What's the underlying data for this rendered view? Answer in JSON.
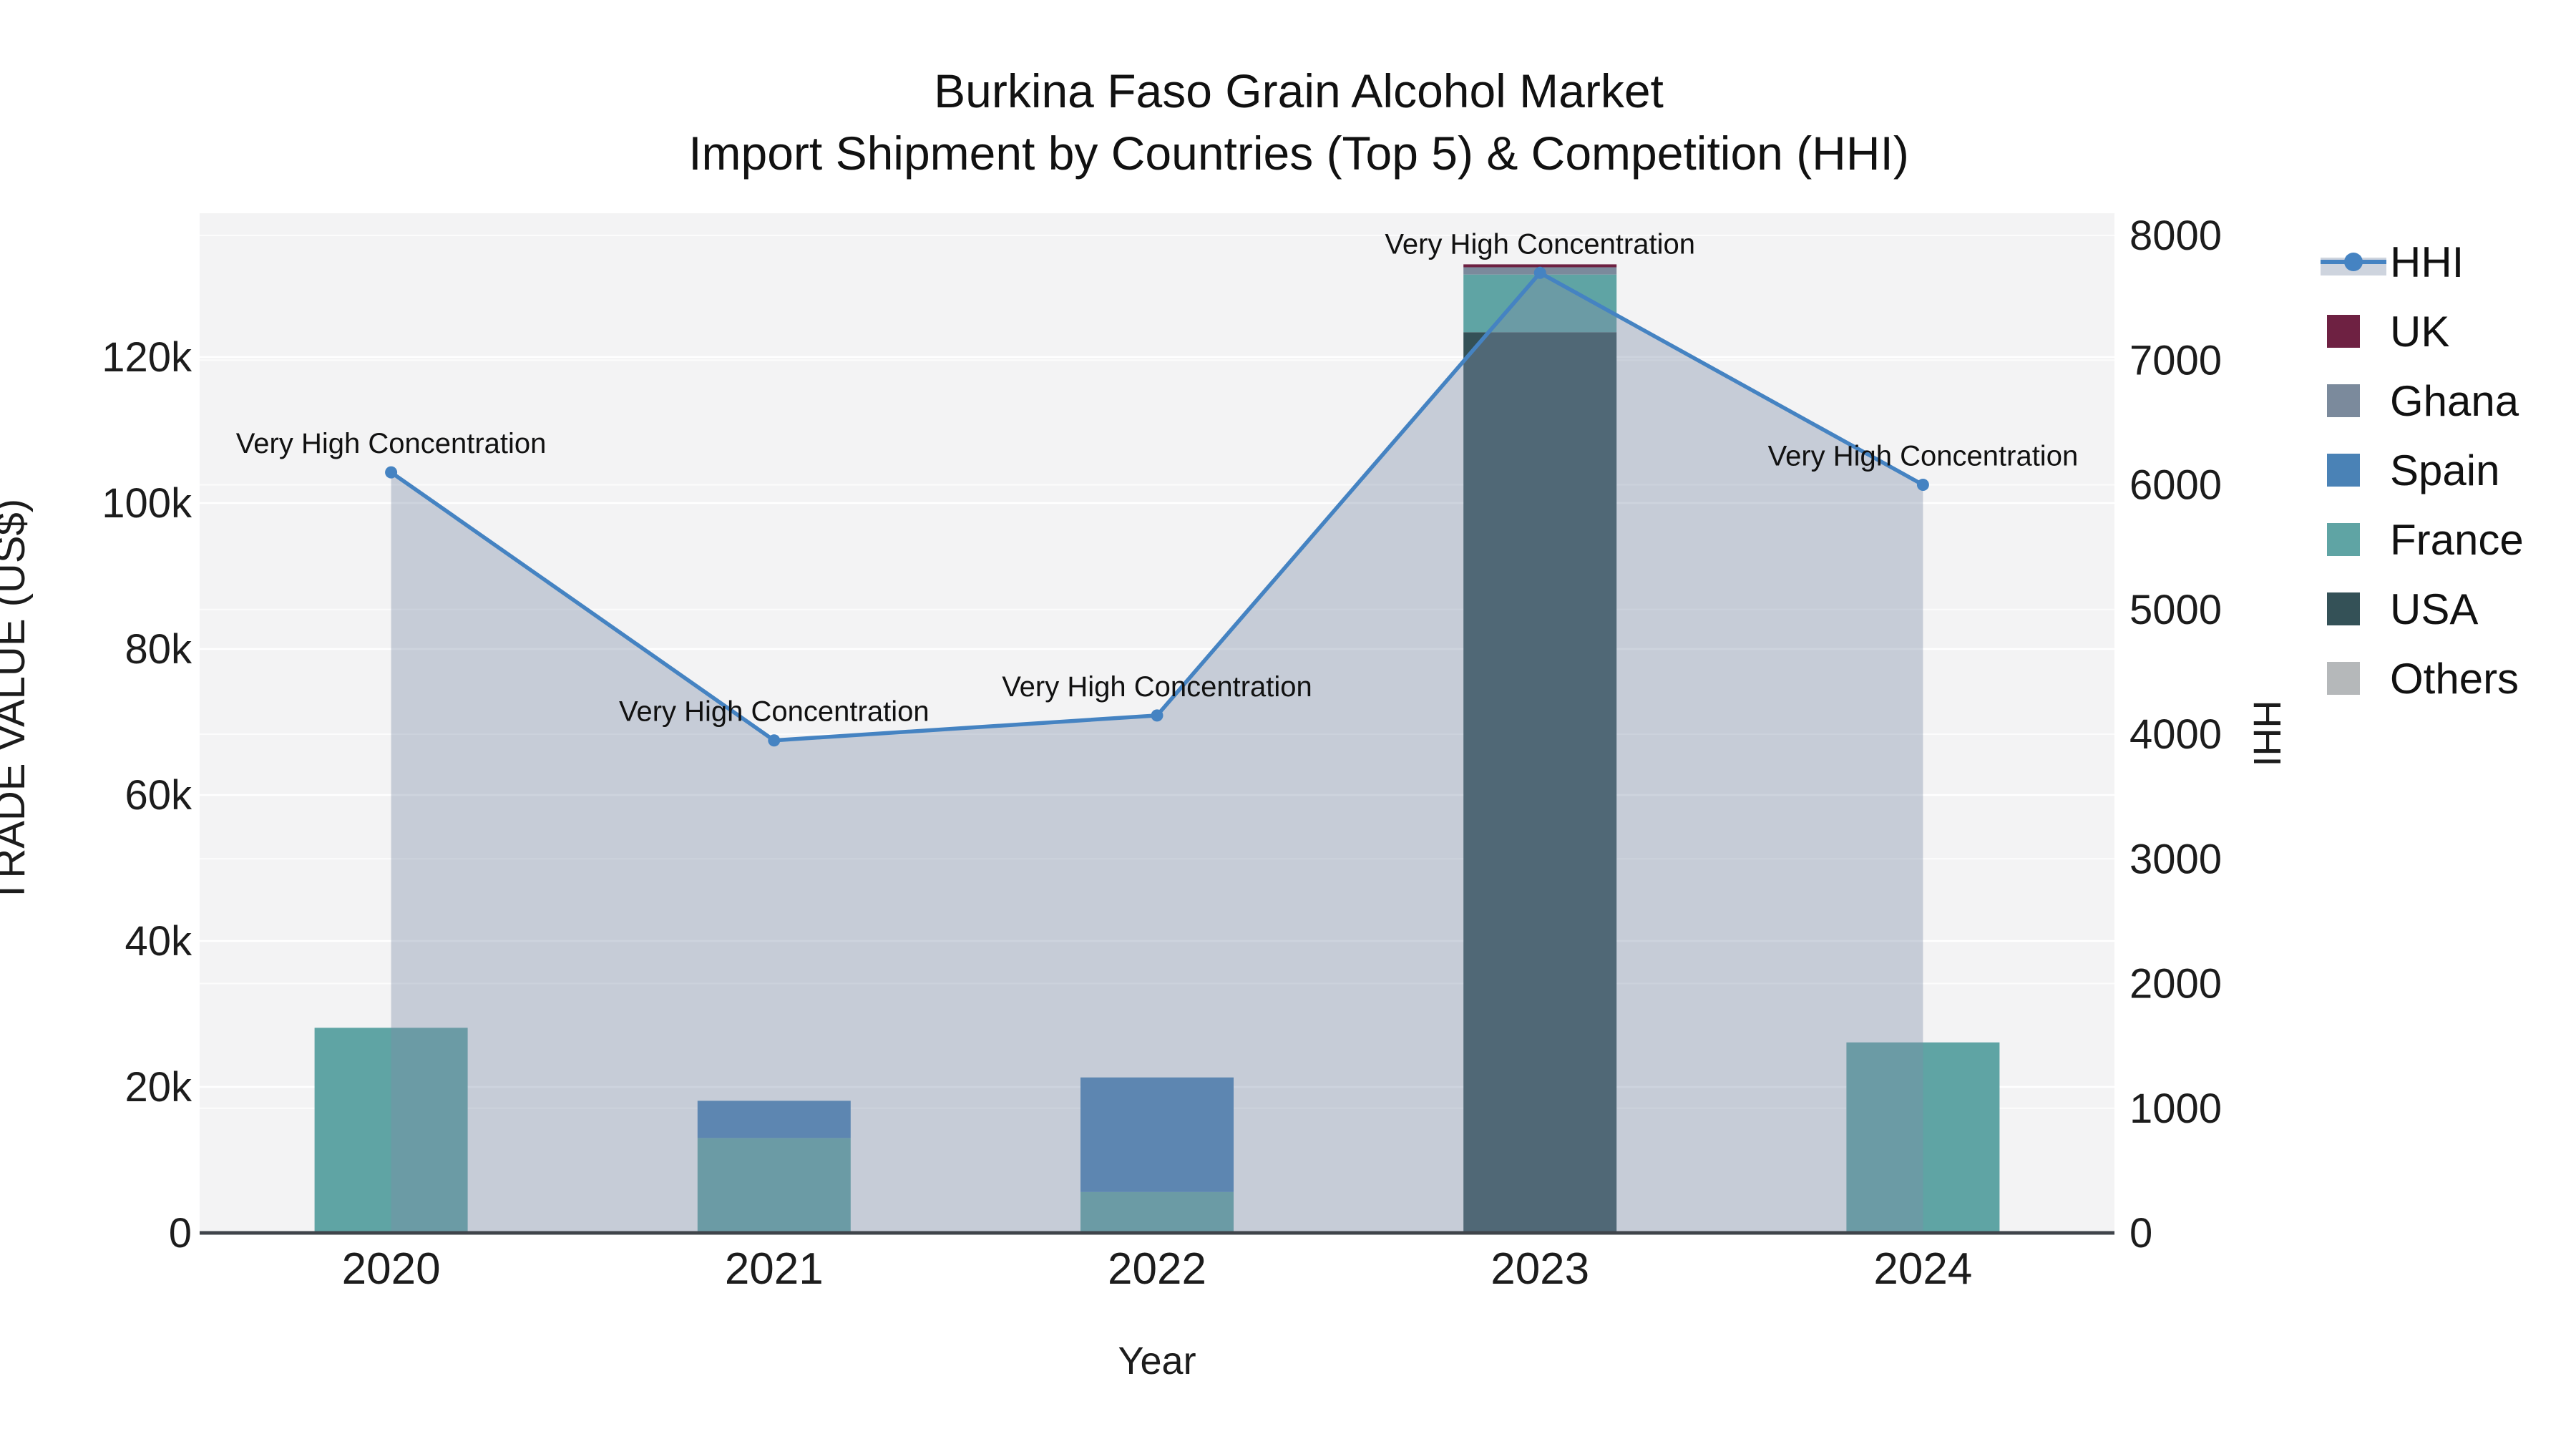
{
  "title": {
    "line1": "Burkina Faso Grain Alcohol Market",
    "line2": "Import Shipment by Countries (Top 5) & Competition (HHI)"
  },
  "chart_data": {
    "type": "combo_stacked_bar_line",
    "categories": [
      "2020",
      "2021",
      "2022",
      "2023",
      "2024"
    ],
    "series": [
      {
        "name": "UK",
        "color": "#6e2142",
        "values": [
          0,
          0,
          0,
          400,
          0
        ]
      },
      {
        "name": "Ghana",
        "color": "#7b8a9c",
        "values": [
          0,
          0,
          0,
          1000,
          0
        ]
      },
      {
        "name": "Spain",
        "color": "#4a82b6",
        "values": [
          0,
          5100,
          15700,
          0,
          0
        ]
      },
      {
        "name": "France",
        "color": "#5fa4a4",
        "values": [
          28100,
          13000,
          5600,
          7900,
          26100
        ]
      },
      {
        "name": "USA",
        "color": "#345157",
        "values": [
          0,
          0,
          0,
          123400,
          0
        ]
      },
      {
        "name": "Others",
        "color": "#b5b8ba",
        "values": [
          0,
          0,
          0,
          0,
          0
        ]
      }
    ],
    "stack_order_bottom_to_top": [
      "Others",
      "USA",
      "France",
      "Spain",
      "Ghana",
      "UK"
    ],
    "line_series": {
      "name": "HHI",
      "color": "#4583c2",
      "fill_color": "rgba(125,142,168,0.38)",
      "marker_radius": 8.5,
      "line_width": 5.5,
      "values": [
        6100,
        3950,
        4150,
        7700,
        6000
      ]
    },
    "annotations": [
      "Very High Concentration",
      "Very High Concentration",
      "Very High Concentration",
      "Very High Concentration",
      "Very High Concentration"
    ],
    "xlabel": "Year",
    "ylabel_left": "TRADE VALUE (US$)",
    "ylabel_right": "HHI",
    "y_left_ticks": [
      {
        "v": 0,
        "label": "0"
      },
      {
        "v": 20000,
        "label": "20k"
      },
      {
        "v": 40000,
        "label": "40k"
      },
      {
        "v": 60000,
        "label": "60k"
      },
      {
        "v": 80000,
        "label": "80k"
      },
      {
        "v": 100000,
        "label": "100k"
      },
      {
        "v": 120000,
        "label": "120k"
      }
    ],
    "y_right_ticks": [
      {
        "v": 0,
        "label": "0"
      },
      {
        "v": 1000,
        "label": "1000"
      },
      {
        "v": 2000,
        "label": "2000"
      },
      {
        "v": 3000,
        "label": "3000"
      },
      {
        "v": 4000,
        "label": "4000"
      },
      {
        "v": 5000,
        "label": "5000"
      },
      {
        "v": 6000,
        "label": "6000"
      },
      {
        "v": 7000,
        "label": "7000"
      },
      {
        "v": 8000,
        "label": "8000"
      }
    ],
    "ylim_left": [
      0,
      139700
    ],
    "ylim_right": [
      0,
      8178
    ],
    "legend_order": [
      "HHI",
      "UK",
      "Ghana",
      "Spain",
      "France",
      "USA",
      "Others"
    ],
    "grid": true,
    "legend_position": "right",
    "colors": {
      "plot_bg": "#f3f3f4",
      "grid": "#ffffff",
      "axis_line": "#3f444a",
      "text": "#1c1c1c"
    }
  }
}
